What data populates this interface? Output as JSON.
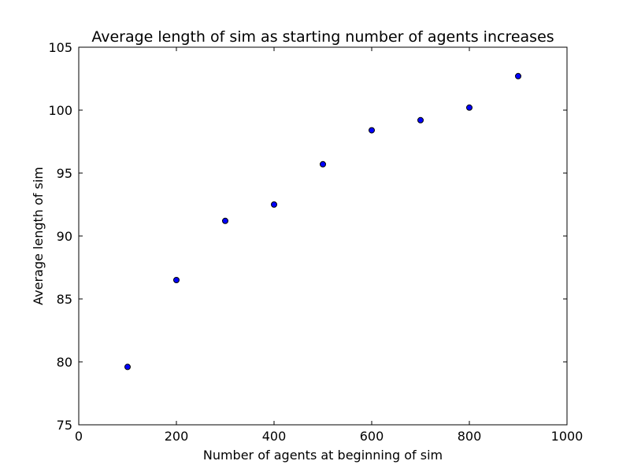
{
  "chart_data": {
    "type": "scatter",
    "title": "Average length of sim as starting number of agents increases",
    "xlabel": "Number of agents at beginning of sim",
    "ylabel": "Average length of sim",
    "xlim": [
      0,
      1000
    ],
    "ylim": [
      75,
      105
    ],
    "xticks": [
      0,
      200,
      400,
      600,
      800,
      1000
    ],
    "yticks": [
      75,
      80,
      85,
      90,
      95,
      100,
      105
    ],
    "xtick_labels": [
      "0",
      "200",
      "400",
      "600",
      "800",
      "1000"
    ],
    "ytick_labels": [
      "75",
      "80",
      "85",
      "90",
      "95",
      "100",
      "105"
    ],
    "grid": false,
    "marker_color": "#0000ff",
    "marker_edge_color": "#000000",
    "points": [
      {
        "x": 100,
        "y": 79.6
      },
      {
        "x": 200,
        "y": 86.5
      },
      {
        "x": 300,
        "y": 91.2
      },
      {
        "x": 400,
        "y": 92.5
      },
      {
        "x": 500,
        "y": 95.7
      },
      {
        "x": 600,
        "y": 98.4
      },
      {
        "x": 700,
        "y": 99.2
      },
      {
        "x": 800,
        "y": 100.2
      },
      {
        "x": 900,
        "y": 102.7
      }
    ]
  }
}
